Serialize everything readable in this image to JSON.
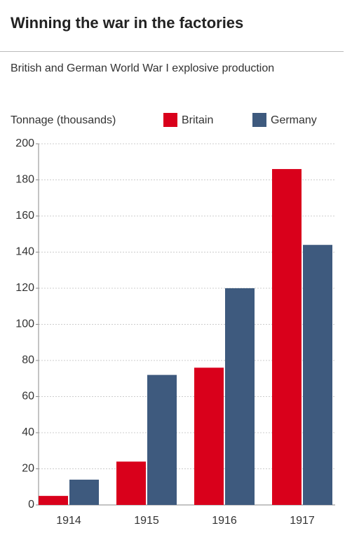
{
  "chart_data": {
    "type": "bar",
    "title": "Winning the war in the factories",
    "subtitle": "British and German World War I explosive production",
    "ylabel": "Tonnage (thousands)",
    "categories": [
      "1914",
      "1915",
      "1916",
      "1917"
    ],
    "series": [
      {
        "name": "Britain",
        "color": "#d9001b",
        "values": [
          5,
          24,
          76,
          186
        ]
      },
      {
        "name": "Germany",
        "color": "#3e5a7e",
        "values": [
          14,
          72,
          120,
          144
        ]
      }
    ],
    "ylim": [
      0,
      200
    ],
    "yticks": [
      0,
      20,
      40,
      60,
      80,
      100,
      120,
      140,
      160,
      180,
      200
    ],
    "grid": true
  }
}
